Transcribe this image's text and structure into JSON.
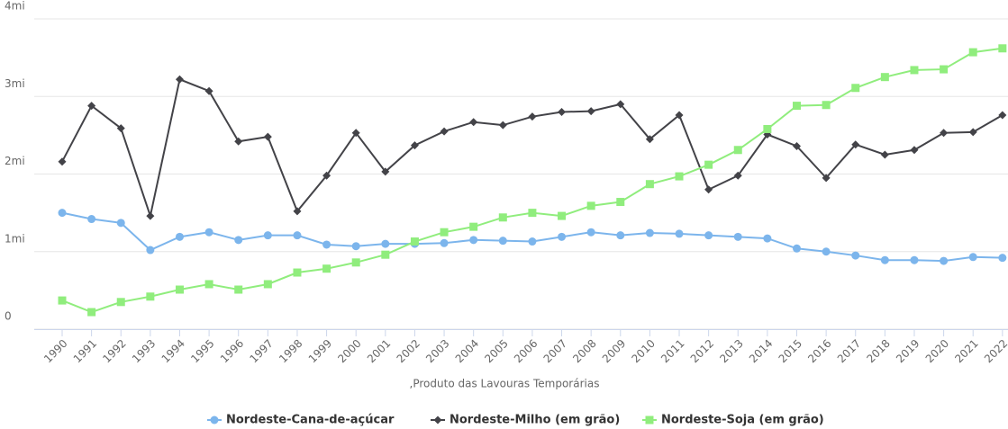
{
  "chart_data": {
    "type": "line",
    "x_label": ",Produto das Lavouras Temporárias",
    "categories": [
      "1990",
      "1991",
      "1992",
      "1993",
      "1994",
      "1995",
      "1996",
      "1997",
      "1998",
      "1999",
      "2000",
      "2001",
      "2002",
      "2003",
      "2004",
      "2005",
      "2006",
      "2007",
      "2008",
      "2009",
      "2010",
      "2011",
      "2012",
      "2013",
      "2014",
      "2015",
      "2016",
      "2017",
      "2018",
      "2019",
      "2020",
      "2021",
      "2022"
    ],
    "series": [
      {
        "name": "Nordeste-Cana-de-açúcar",
        "color": "#7cb5ec",
        "marker": "circle",
        "values": [
          1.5,
          1.42,
          1.37,
          1.02,
          1.19,
          1.25,
          1.15,
          1.21,
          1.21,
          1.09,
          1.07,
          1.1,
          1.1,
          1.11,
          1.15,
          1.14,
          1.13,
          1.19,
          1.25,
          1.21,
          1.24,
          1.23,
          1.21,
          1.19,
          1.17,
          1.04,
          1.0,
          0.95,
          0.89,
          0.89,
          0.88,
          0.93,
          0.92
        ]
      },
      {
        "name": "Nordeste-Milho (em grão)",
        "color": "#434348",
        "marker": "diamond",
        "values": [
          2.16,
          2.88,
          2.59,
          1.46,
          3.22,
          3.07,
          2.42,
          2.48,
          1.52,
          1.98,
          2.53,
          2.03,
          2.37,
          2.55,
          2.67,
          2.63,
          2.74,
          2.8,
          2.81,
          2.9,
          2.45,
          2.76,
          1.8,
          1.98,
          2.51,
          2.36,
          1.95,
          2.38,
          2.25,
          2.31,
          2.53,
          2.54,
          2.76
        ]
      },
      {
        "name": "Nordeste-Soja (em grão)",
        "color": "#90ed7d",
        "marker": "square",
        "values": [
          0.37,
          0.22,
          0.35,
          0.42,
          0.51,
          0.58,
          0.51,
          0.58,
          0.73,
          0.78,
          0.86,
          0.96,
          1.13,
          1.25,
          1.32,
          1.44,
          1.5,
          1.46,
          1.59,
          1.64,
          1.87,
          1.97,
          2.12,
          2.31,
          2.58,
          2.88,
          2.89,
          3.11,
          3.25,
          3.34,
          3.35,
          3.57,
          3.62
        ]
      }
    ],
    "ylim": [
      0,
      4
    ],
    "yticks": [
      0,
      {
        "value": 1,
        "label": "1mi"
      },
      {
        "value": 2,
        "label": "2mi"
      },
      {
        "value": 3,
        "label": "3mi"
      },
      {
        "value": 4,
        "label": "4mi"
      }
    ],
    "grid": true
  }
}
